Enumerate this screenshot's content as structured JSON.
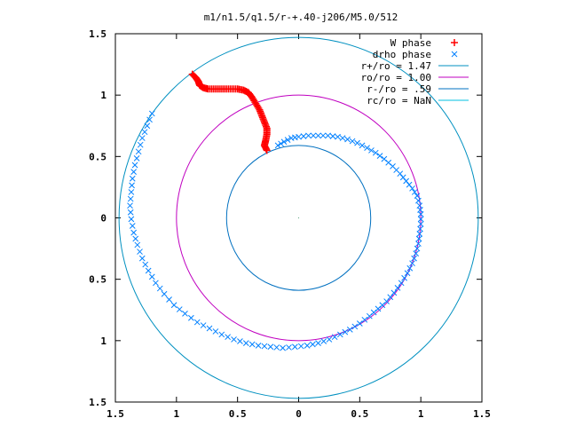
{
  "chart_data": {
    "type": "scatter",
    "title": "m1/n1.5/q1.5/r-+.40-j206/M5.0/512",
    "xlabel": "",
    "ylabel": "",
    "xlim": [
      -1.5,
      1.5
    ],
    "ylim": [
      -1.5,
      1.5
    ],
    "x_tick_labels": [
      "1.5",
      "1",
      "0.5",
      "0",
      "0.5",
      "1",
      "1.5"
    ],
    "y_tick_labels": [
      "1.5",
      "1",
      "0.5",
      "0",
      "0.5",
      "1",
      "1.5"
    ],
    "x_ticks": [
      -1.5,
      -1,
      -0.5,
      0,
      0.5,
      1,
      1.5
    ],
    "y_ticks": [
      1.5,
      1,
      0.5,
      0,
      -0.5,
      -1,
      -1.5
    ],
    "grid": false,
    "legend_position": "top-right",
    "series": [
      {
        "name": "W phase",
        "marker": "plus",
        "color": "#ff0000",
        "points": [
          [
            -0.87,
            1.17
          ],
          [
            -0.84,
            1.14
          ],
          [
            -0.82,
            1.11
          ],
          [
            -0.81,
            1.08
          ],
          [
            -0.78,
            1.06
          ],
          [
            -0.74,
            1.05
          ],
          [
            -0.68,
            1.05
          ],
          [
            -0.62,
            1.05
          ],
          [
            -0.56,
            1.05
          ],
          [
            -0.5,
            1.05
          ],
          [
            -0.45,
            1.04
          ],
          [
            -0.41,
            1.02
          ],
          [
            -0.38,
            0.98
          ],
          [
            -0.35,
            0.93
          ],
          [
            -0.32,
            0.88
          ],
          [
            -0.3,
            0.83
          ],
          [
            -0.28,
            0.78
          ],
          [
            -0.26,
            0.73
          ],
          [
            -0.26,
            0.68
          ],
          [
            -0.27,
            0.63
          ],
          [
            -0.28,
            0.59
          ],
          [
            -0.26,
            0.55
          ]
        ]
      },
      {
        "name": "drho phase",
        "marker": "cross",
        "color": "#0080ff",
        "points": [
          [
            -0.17,
            0.59
          ],
          [
            -0.12,
            0.62
          ],
          [
            -0.06,
            0.65
          ],
          [
            0.0,
            0.66
          ],
          [
            0.08,
            0.67
          ],
          [
            0.16,
            0.67
          ],
          [
            0.24,
            0.67
          ],
          [
            0.32,
            0.66
          ],
          [
            0.4,
            0.64
          ],
          [
            0.48,
            0.61
          ],
          [
            0.56,
            0.57
          ],
          [
            0.63,
            0.53
          ],
          [
            0.7,
            0.48
          ],
          [
            0.77,
            0.42
          ],
          [
            0.83,
            0.36
          ],
          [
            0.88,
            0.3
          ],
          [
            0.93,
            0.24
          ],
          [
            0.97,
            0.18
          ],
          [
            0.99,
            0.1
          ],
          [
            1.0,
            0.03
          ],
          [
            1.0,
            -0.05
          ],
          [
            0.99,
            -0.13
          ],
          [
            0.98,
            -0.21
          ],
          [
            0.96,
            -0.29
          ],
          [
            0.93,
            -0.37
          ],
          [
            0.89,
            -0.45
          ],
          [
            0.84,
            -0.53
          ],
          [
            0.78,
            -0.61
          ],
          [
            0.72,
            -0.68
          ],
          [
            0.65,
            -0.74
          ],
          [
            0.58,
            -0.8
          ],
          [
            0.5,
            -0.86
          ],
          [
            0.42,
            -0.91
          ],
          [
            0.34,
            -0.95
          ],
          [
            0.25,
            -0.99
          ],
          [
            0.16,
            -1.02
          ],
          [
            0.07,
            -1.04
          ],
          [
            -0.03,
            -1.05
          ],
          [
            -0.13,
            -1.06
          ],
          [
            -0.23,
            -1.05
          ],
          [
            -0.33,
            -1.04
          ],
          [
            -0.43,
            -1.02
          ],
          [
            -0.53,
            -0.99
          ],
          [
            -0.63,
            -0.95
          ],
          [
            -0.73,
            -0.9
          ],
          [
            -0.83,
            -0.85
          ],
          [
            -0.93,
            -0.78
          ],
          [
            -1.02,
            -0.71
          ],
          [
            -1.1,
            -0.62
          ],
          [
            -1.17,
            -0.53
          ],
          [
            -1.23,
            -0.43
          ],
          [
            -1.28,
            -0.33
          ],
          [
            -1.32,
            -0.22
          ],
          [
            -1.35,
            -0.12
          ],
          [
            -1.37,
            -0.01
          ],
          [
            -1.38,
            0.1
          ],
          [
            -1.37,
            0.21
          ],
          [
            -1.36,
            0.32
          ],
          [
            -1.34,
            0.43
          ],
          [
            -1.31,
            0.54
          ],
          [
            -1.28,
            0.65
          ],
          [
            -1.24,
            0.75
          ],
          [
            -1.2,
            0.85
          ]
        ]
      },
      {
        "name": "r+/ro = 1.47",
        "type": "circle",
        "radius": 1.47,
        "color": "#0090c0"
      },
      {
        "name": "ro/ro = 1.00",
        "type": "circle",
        "radius": 1.0,
        "color": "#c000c0"
      },
      {
        "name": "r-/ro = .59",
        "type": "circle",
        "radius": 0.59,
        "color": "#0070c0"
      },
      {
        "name": "rc/ro = NaN",
        "type": "circle",
        "radius": null,
        "color": "#00c0e0"
      }
    ]
  }
}
